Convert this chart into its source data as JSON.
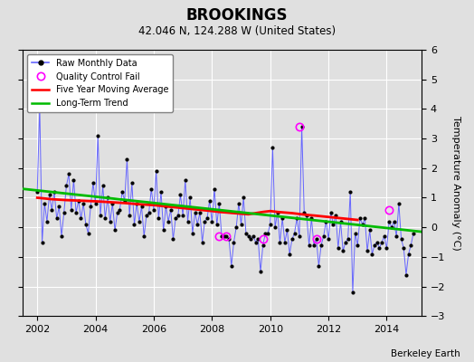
{
  "title": "BROOKINGS",
  "subtitle": "42.046 N, 124.288 W (United States)",
  "footer": "Berkeley Earth",
  "ylabel": "Temperature Anomaly (°C)",
  "xlim": [
    2001.5,
    2015.2
  ],
  "ylim": [
    -3,
    6
  ],
  "yticks": [
    -3,
    -2,
    -1,
    0,
    1,
    2,
    3,
    4,
    5,
    6
  ],
  "xticks": [
    2002,
    2004,
    2006,
    2008,
    2010,
    2012,
    2014
  ],
  "bg_color": "#e0e0e0",
  "raw_color": "#6666ff",
  "ma_color": "#ff0000",
  "trend_color": "#00bb00",
  "qc_color": "#ff00ff",
  "raw_data_x": [
    2002.0,
    2002.083,
    2002.167,
    2002.25,
    2002.333,
    2002.417,
    2002.5,
    2002.583,
    2002.667,
    2002.75,
    2002.833,
    2002.917,
    2003.0,
    2003.083,
    2003.167,
    2003.25,
    2003.333,
    2003.417,
    2003.5,
    2003.583,
    2003.667,
    2003.75,
    2003.833,
    2003.917,
    2004.0,
    2004.083,
    2004.167,
    2004.25,
    2004.333,
    2004.417,
    2004.5,
    2004.583,
    2004.667,
    2004.75,
    2004.833,
    2004.917,
    2005.0,
    2005.083,
    2005.167,
    2005.25,
    2005.333,
    2005.417,
    2005.5,
    2005.583,
    2005.667,
    2005.75,
    2005.833,
    2005.917,
    2006.0,
    2006.083,
    2006.167,
    2006.25,
    2006.333,
    2006.417,
    2006.5,
    2006.583,
    2006.667,
    2006.75,
    2006.833,
    2006.917,
    2007.0,
    2007.083,
    2007.167,
    2007.25,
    2007.333,
    2007.417,
    2007.5,
    2007.583,
    2007.667,
    2007.75,
    2007.833,
    2007.917,
    2008.0,
    2008.083,
    2008.167,
    2008.25,
    2008.333,
    2008.417,
    2008.5,
    2008.583,
    2008.667,
    2008.75,
    2008.833,
    2008.917,
    2009.0,
    2009.083,
    2009.167,
    2009.25,
    2009.333,
    2009.417,
    2009.5,
    2009.583,
    2009.667,
    2009.75,
    2009.833,
    2009.917,
    2010.0,
    2010.083,
    2010.167,
    2010.25,
    2010.333,
    2010.417,
    2010.5,
    2010.583,
    2010.667,
    2010.75,
    2010.833,
    2010.917,
    2011.0,
    2011.083,
    2011.167,
    2011.25,
    2011.333,
    2011.417,
    2011.5,
    2011.583,
    2011.667,
    2011.75,
    2011.833,
    2011.917,
    2012.0,
    2012.083,
    2012.167,
    2012.25,
    2012.333,
    2012.417,
    2012.5,
    2012.583,
    2012.667,
    2012.75,
    2012.833,
    2012.917,
    2013.0,
    2013.083,
    2013.167,
    2013.25,
    2013.333,
    2013.417,
    2013.5,
    2013.583,
    2013.667,
    2013.75,
    2013.833,
    2013.917,
    2014.0,
    2014.083,
    2014.167,
    2014.25,
    2014.333,
    2014.417,
    2014.5,
    2014.583,
    2014.667,
    2014.75,
    2014.833,
    2014.917
  ],
  "raw_data_y": [
    1.2,
    4.1,
    -0.5,
    0.8,
    0.2,
    1.1,
    0.6,
    1.2,
    0.3,
    0.7,
    -0.3,
    0.5,
    1.4,
    1.8,
    0.6,
    1.6,
    0.5,
    0.9,
    0.3,
    0.8,
    0.1,
    -0.2,
    0.7,
    1.5,
    0.8,
    3.1,
    0.4,
    1.4,
    0.3,
    1.0,
    0.2,
    0.8,
    -0.1,
    0.5,
    0.6,
    1.2,
    0.9,
    2.3,
    0.4,
    1.5,
    0.1,
    0.8,
    0.2,
    0.7,
    -0.3,
    0.4,
    0.5,
    1.3,
    0.6,
    1.9,
    0.3,
    1.2,
    -0.1,
    0.7,
    0.2,
    0.6,
    -0.4,
    0.3,
    0.4,
    1.1,
    0.4,
    1.6,
    0.2,
    1.0,
    -0.2,
    0.5,
    0.1,
    0.5,
    -0.5,
    0.2,
    0.3,
    0.9,
    0.2,
    1.3,
    0.1,
    0.8,
    -0.3,
    -0.3,
    -0.3,
    -0.4,
    -1.3,
    -0.5,
    0.0,
    0.8,
    0.1,
    1.0,
    -0.2,
    -0.3,
    -0.4,
    -0.3,
    -0.5,
    -0.4,
    -1.5,
    -0.6,
    -0.2,
    -0.2,
    0.1,
    2.7,
    0.0,
    0.5,
    -0.5,
    0.3,
    -0.5,
    -0.1,
    -0.9,
    -0.4,
    -0.2,
    0.3,
    -0.3,
    3.4,
    0.5,
    0.4,
    -0.6,
    0.3,
    -0.6,
    -0.4,
    -1.3,
    -0.6,
    -0.3,
    0.2,
    -0.4,
    0.5,
    0.1,
    0.4,
    -0.7,
    0.2,
    -0.8,
    -0.5,
    -0.4,
    1.2,
    -2.2,
    -0.2,
    -0.6,
    0.3,
    0.1,
    0.3,
    -0.8,
    -0.1,
    -0.9,
    -0.6,
    -0.5,
    -0.7,
    -0.5,
    -0.3,
    -0.7,
    0.2,
    0.0,
    0.2,
    -0.3,
    0.8,
    -0.4,
    -0.7,
    -1.6,
    -0.9,
    -0.6,
    -0.2
  ],
  "qc_fail_x": [
    2008.25,
    2008.5,
    2009.75,
    2011.0,
    2011.583,
    2014.083
  ],
  "qc_fail_y": [
    -0.3,
    -0.3,
    -0.4,
    3.4,
    -0.4,
    0.58
  ],
  "moving_avg_x": [
    2002.0,
    2002.5,
    2003.0,
    2003.5,
    2004.0,
    2004.5,
    2005.0,
    2005.5,
    2006.0,
    2006.5,
    2007.0,
    2007.5,
    2008.0,
    2008.25,
    2008.5,
    2008.75,
    2009.0,
    2009.25,
    2009.5,
    2009.75,
    2010.0,
    2010.25,
    2010.5,
    2010.75,
    2011.0,
    2011.25,
    2011.5,
    2012.0,
    2012.5,
    2013.0
  ],
  "moving_avg_y": [
    1.0,
    0.95,
    0.92,
    0.9,
    0.88,
    0.85,
    0.82,
    0.78,
    0.75,
    0.7,
    0.65,
    0.6,
    0.55,
    0.52,
    0.5,
    0.48,
    0.46,
    0.44,
    0.48,
    0.52,
    0.55,
    0.52,
    0.5,
    0.48,
    0.45,
    0.42,
    0.4,
    0.35,
    0.3,
    0.25
  ],
  "trend_x": [
    2001.5,
    2015.2
  ],
  "trend_y": [
    1.3,
    -0.15
  ]
}
